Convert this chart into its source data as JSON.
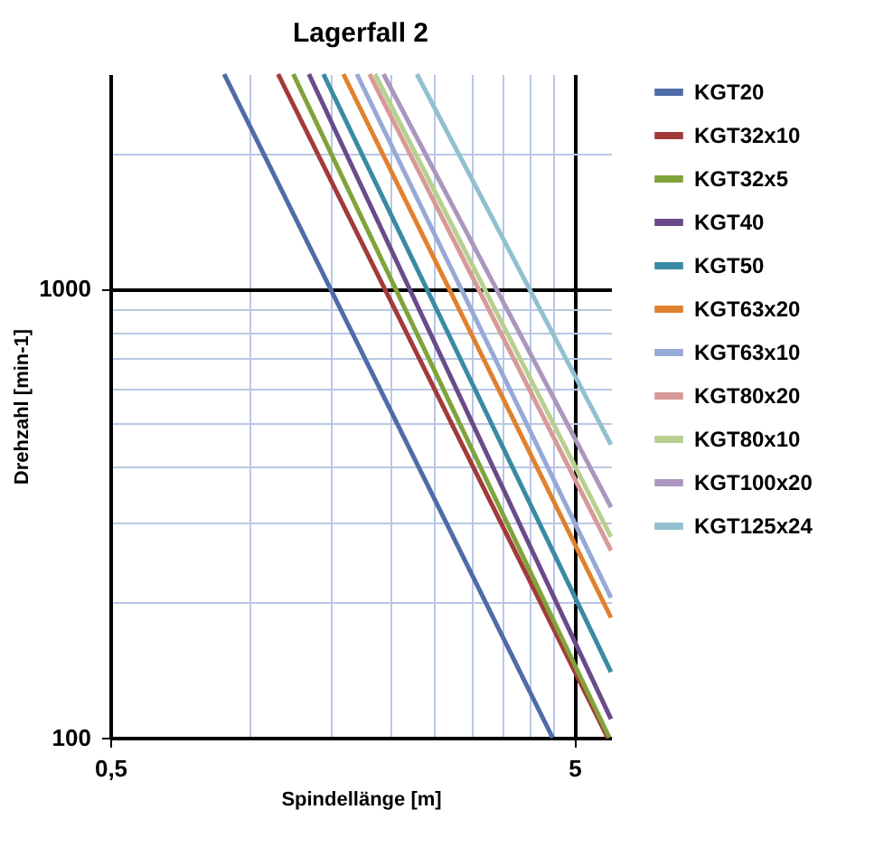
{
  "chart_data": {
    "type": "line",
    "title": "Lagerfall 2",
    "xlabel": "Spindellänge [m]",
    "ylabel": "Drehzahl [min-1]",
    "log": "xy",
    "grid": true,
    "legend": "right",
    "line_style": "solid",
    "marker": "none",
    "xlim": [
      0.5,
      6
    ],
    "ylim": [
      100,
      3000
    ],
    "xticks": [
      {
        "value": 0.5,
        "label": "0,5"
      },
      {
        "value": 1,
        "label": null
      },
      {
        "value": 1.5,
        "label": null
      },
      {
        "value": 2,
        "label": null
      },
      {
        "value": 2.5,
        "label": null
      },
      {
        "value": 3,
        "label": null
      },
      {
        "value": 3.5,
        "label": null
      },
      {
        "value": 4,
        "label": null
      },
      {
        "value": 4.5,
        "label": null
      },
      5
    ],
    "yticks": [
      100,
      {
        "value": 200,
        "label": null
      },
      {
        "value": 300,
        "label": null
      },
      {
        "value": 400,
        "label": null
      },
      {
        "value": 500,
        "label": null
      },
      {
        "value": 600,
        "label": null
      },
      {
        "value": 700,
        "label": null
      },
      {
        "value": 800,
        "label": null
      },
      {
        "value": 900,
        "label": null
      },
      1000,
      {
        "value": 2000,
        "label": null
      }
    ],
    "series": [
      {
        "name": "KGT20",
        "color": "#4f6ba8",
        "x": [
          0.88,
          4.49
        ],
        "values": [
          3000,
          100
        ]
      },
      {
        "name": "KGT32x10",
        "color": "#a33a3a",
        "x": [
          1.15,
          5.9
        ],
        "values": [
          3000,
          100
        ]
      },
      {
        "name": "KGT32x5",
        "color": "#80a33a",
        "x": [
          1.24,
          5.95
        ],
        "values": [
          3000,
          100
        ]
      },
      {
        "name": "KGT40",
        "color": "#6b4a8a",
        "x": [
          1.34,
          6
        ],
        "values": [
          3000,
          110
        ]
      },
      {
        "name": "KGT50",
        "color": "#3a8aa3",
        "x": [
          1.44,
          6
        ],
        "values": [
          3000,
          140
        ]
      },
      {
        "name": "KGT63x20",
        "color": "#e0812f",
        "x": [
          1.59,
          6
        ],
        "values": [
          3000,
          185
        ]
      },
      {
        "name": "KGT63x10",
        "color": "#97a9d6",
        "x": [
          1.7,
          6
        ],
        "values": [
          3000,
          205
        ]
      },
      {
        "name": "KGT80x20",
        "color": "#d69a97",
        "x": [
          1.81,
          6
        ],
        "values": [
          3000,
          261
        ]
      },
      {
        "name": "KGT80x10",
        "color": "#b8d08f",
        "x": [
          1.86,
          6
        ],
        "values": [
          3000,
          280
        ]
      },
      {
        "name": "KGT100x20",
        "color": "#ab97bd",
        "x": [
          1.94,
          6
        ],
        "values": [
          3000,
          326
        ]
      },
      {
        "name": "KGT125x24",
        "color": "#92c0d0",
        "x": [
          2.29,
          6
        ],
        "values": [
          3000,
          449
        ]
      }
    ]
  }
}
